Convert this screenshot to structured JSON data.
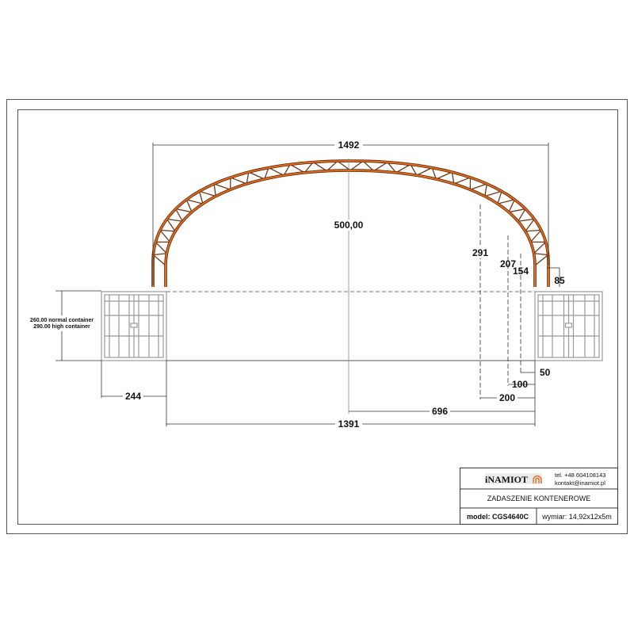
{
  "drawing": {
    "dimensions": {
      "overall_width": "1492",
      "height": "500,00",
      "d291": "291",
      "d207": "207",
      "d154": "154",
      "d85": "85",
      "d50": "50",
      "d100": "100",
      "d200": "200",
      "d696": "696",
      "d1391": "1391",
      "d244": "244"
    },
    "container_height_note": {
      "normal": "260.00 normal container",
      "high": "290.00 high container"
    },
    "colors": {
      "truss": "#e06a1e",
      "truss_web": "#6b3a1a",
      "container": "#888888",
      "lines": "#333333"
    }
  },
  "title_block": {
    "logo": "iNAMIOT",
    "phone": "tel. +48 604108143",
    "email": "kontakt@inamiot.pl",
    "title": "ZADASZENIE KONTENEROWE",
    "model": "model: CGS4640C",
    "size": "wymiar: 14,92x12x5m"
  }
}
